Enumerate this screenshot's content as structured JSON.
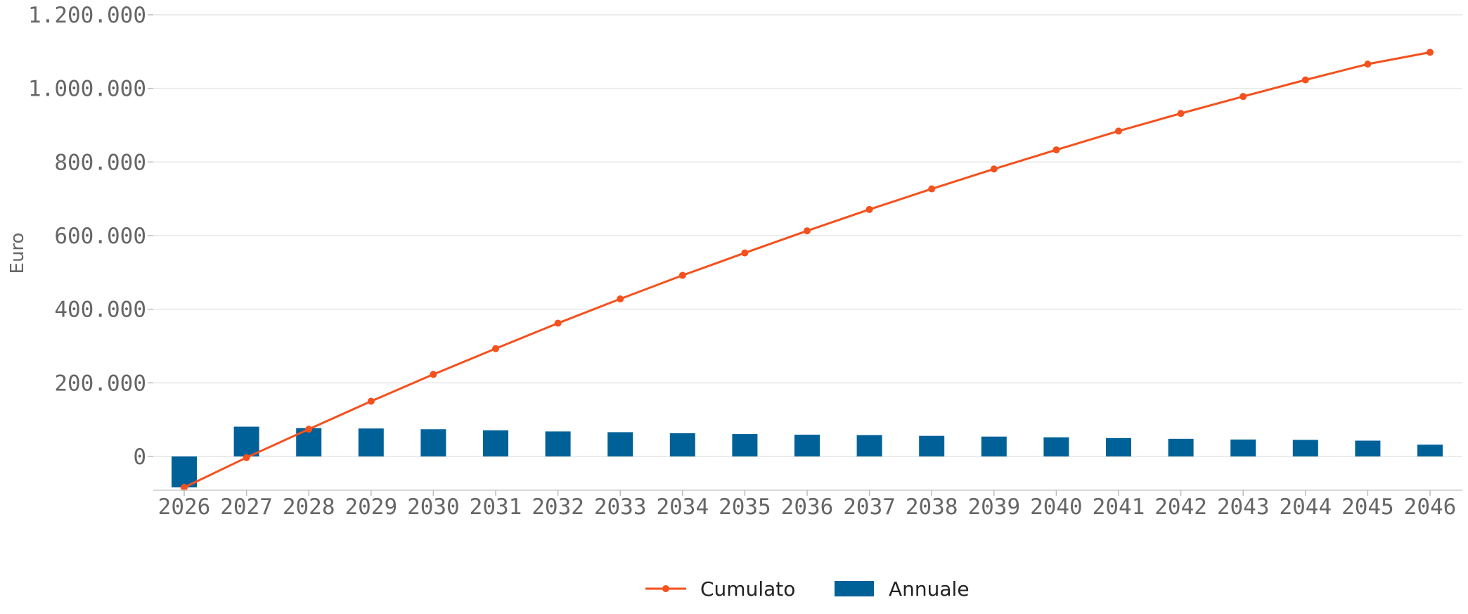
{
  "chart_data": {
    "type": "bar+line",
    "title": "",
    "xlabel": "",
    "ylabel": "Euro",
    "ylim": [
      -90000,
      1200000
    ],
    "yticks": [
      0,
      200000,
      400000,
      600000,
      800000,
      1000000,
      1200000
    ],
    "ytick_labels": [
      "0",
      "200.000",
      "400.000",
      "600.000",
      "800.000",
      "1.000.000",
      "1.200.000"
    ],
    "categories": [
      "2026",
      "2027",
      "2028",
      "2029",
      "2030",
      "2031",
      "2032",
      "2033",
      "2034",
      "2035",
      "2036",
      "2037",
      "2038",
      "2039",
      "2040",
      "2041",
      "2042",
      "2043",
      "2044",
      "2045",
      "2046"
    ],
    "grid": true,
    "legend_position": "bottom-center",
    "series": [
      {
        "name": "Cumulato",
        "kind": "line",
        "color": "#f4511e",
        "values": [
          -84000,
          -3000,
          74000,
          150000,
          223000,
          293000,
          362000,
          428000,
          492000,
          553000,
          613000,
          671000,
          727000,
          781000,
          833000,
          884000,
          932000,
          978000,
          1023000,
          1066000,
          1098000
        ]
      },
      {
        "name": "Annuale",
        "kind": "bar",
        "color": "#006199",
        "values": [
          -84000,
          81000,
          77000,
          76000,
          74000,
          71000,
          68000,
          66000,
          63000,
          61000,
          59000,
          58000,
          56000,
          54000,
          52000,
          50000,
          48000,
          46000,
          45000,
          43000,
          32000
        ]
      }
    ]
  }
}
